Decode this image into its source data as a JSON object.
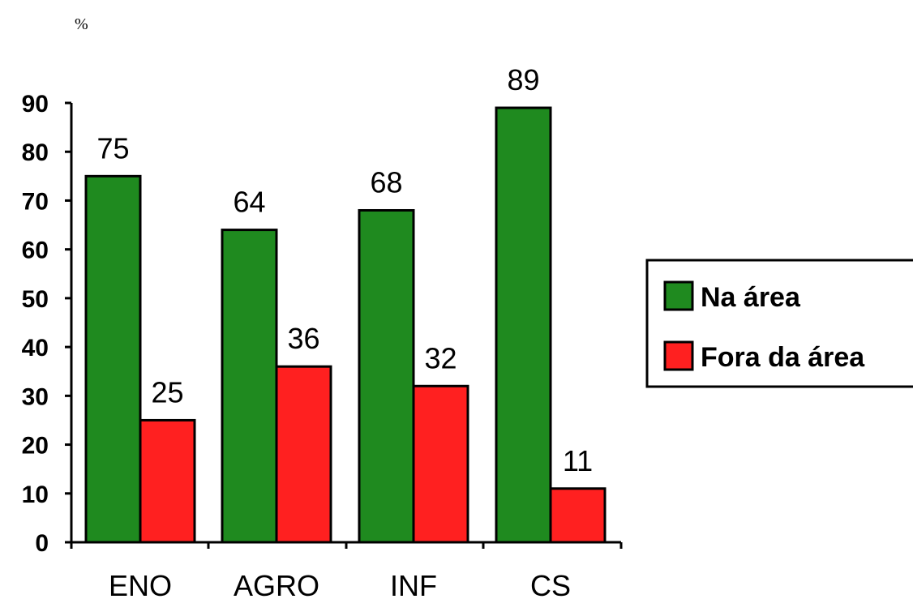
{
  "chart_data": {
    "type": "bar",
    "ylabel": "%",
    "ylim": [
      0,
      90
    ],
    "yticks": [
      "0",
      "10",
      "20",
      "30",
      "40",
      "50",
      "60",
      "70",
      "80",
      "90"
    ],
    "categories": [
      "ENO",
      "AGRO",
      "INF",
      "CS"
    ],
    "series": [
      {
        "name": "Na área",
        "color": "#1f8a1f",
        "values": [
          75,
          64,
          68,
          89
        ]
      },
      {
        "name": "Fora da área",
        "color": "#ff2020",
        "values": [
          25,
          36,
          32,
          11
        ]
      }
    ],
    "data_labels": true,
    "legend_position": "right",
    "grid": false
  }
}
